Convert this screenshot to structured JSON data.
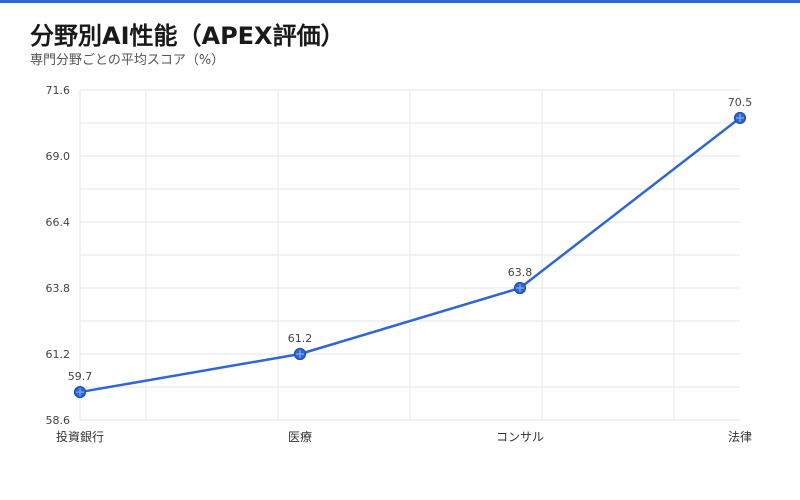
{
  "header": {
    "title": "分野別AI性能（APEX評価）",
    "subtitle": "専門分野ごとの平均スコア（%）"
  },
  "colors": {
    "accent": "#2f66d6",
    "line": "#2f66d6",
    "grid": "#e6e6e6"
  },
  "chart_data": {
    "type": "line",
    "title": "分野別AI性能（APEX評価）",
    "subtitle": "専門分野ごとの平均スコア（%）",
    "categories": [
      "投資銀行",
      "医療",
      "コンサル",
      "法律"
    ],
    "series": [
      {
        "values": [
          59.7,
          61.2,
          63.8,
          70.5
        ]
      }
    ],
    "data_labels": [
      "59.7",
      "61.2",
      "63.8",
      "70.5"
    ],
    "ylim": [
      58.6,
      71.6
    ],
    "yticks": [
      58.6,
      61.2,
      63.8,
      66.4,
      69.0,
      71.6
    ],
    "ytick_labels": [
      "58.6",
      "61.2",
      "63.8",
      "66.4",
      "69.0",
      "71.6"
    ],
    "grid": true,
    "legend": "none"
  }
}
